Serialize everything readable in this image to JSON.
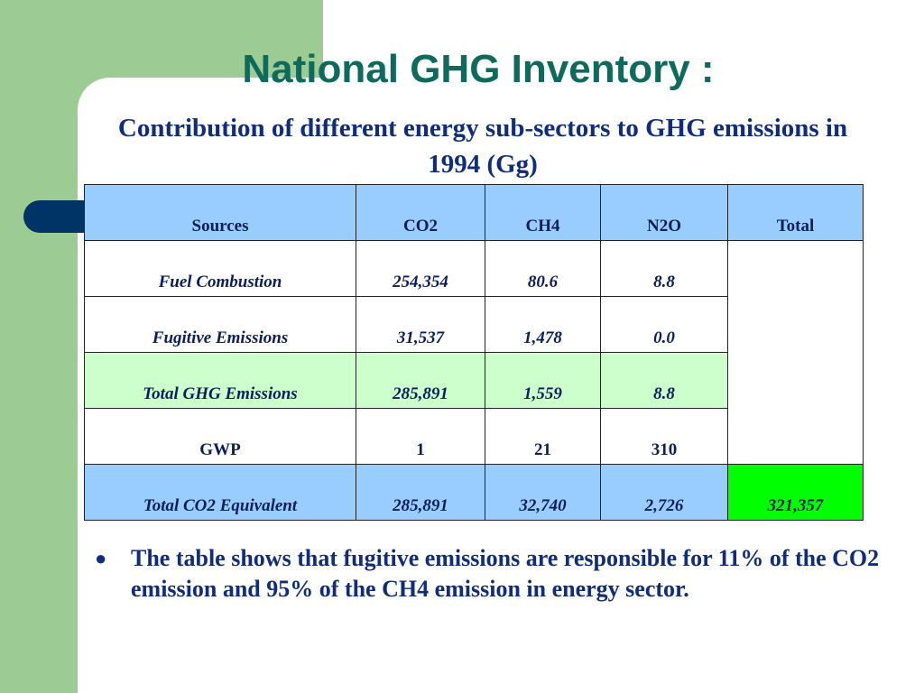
{
  "slide": {
    "title": "National GHG Inventory :",
    "subtitle": "Contribution of different energy sub-sectors to GHG emissions in 1994 (Gg)",
    "bullet": "The table shows that fugitive emissions are responsible for 11% of the CO2 emission and 95% of the CH4 emission in energy sector.",
    "bullet_icon": "filled-circle-bullet"
  },
  "colors": {
    "title": "#0e6b5c",
    "text": "#0f2d7a",
    "band_green": "#9ccc93",
    "tab_navy": "#003366",
    "header_blue": "#99ccff",
    "row_mint": "#ccffcc",
    "total_green": "#00ff00"
  },
  "table": {
    "headers": [
      "Sources",
      "CO2",
      "CH4",
      "N2O",
      "Total"
    ],
    "rows": [
      {
        "source": "Fuel Combustion",
        "co2": "254,354",
        "ch4": "80.6",
        "n2o": "8.8"
      },
      {
        "source": "Fugitive Emissions",
        "co2": "31,537",
        "ch4": "1,478",
        "n2o": "0.0"
      },
      {
        "source": "Total GHG Emissions",
        "co2": "285,891",
        "ch4": "1,559",
        "n2o": "8.8"
      },
      {
        "source": "GWP",
        "co2": "1",
        "ch4": "21",
        "n2o": "310"
      }
    ],
    "total_row": {
      "source": "Total CO2 Equivalent",
      "co2": "285,891",
      "ch4": "32,740",
      "n2o": "2,726",
      "total": "321,357"
    }
  }
}
